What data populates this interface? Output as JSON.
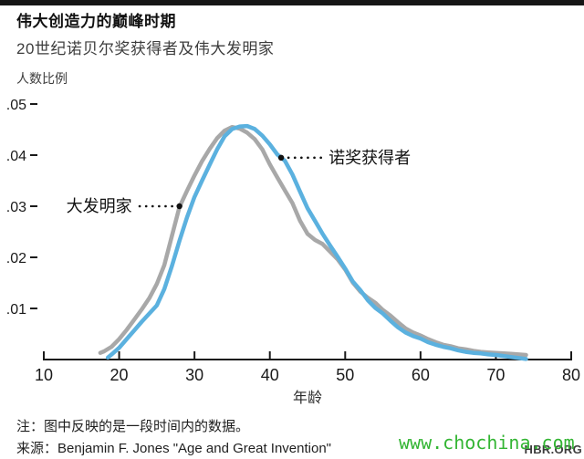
{
  "header": {
    "title": "伟大创造力的巅峰时期",
    "subtitle": "20世纪诺贝尔奖获得者及伟大发明家"
  },
  "footer": {
    "note": "注：图中反映的是一段时间内的数据。",
    "source": "来源：Benjamin F. Jones \"Age and Great Invention\"",
    "brand": "HBR.ORG",
    "watermark": "www.chochina.com",
    "watermark_color": "#33b533"
  },
  "chart_data": {
    "type": "line",
    "title": "伟大创造力的巅峰时期",
    "subtitle": "20世纪诺贝尔奖获得者及伟大发明家",
    "xlabel": "年龄",
    "ylabel": "人数比例",
    "xlim": [
      10,
      80
    ],
    "ylim": [
      0,
      0.05
    ],
    "x_ticks": [
      10,
      20,
      30,
      40,
      50,
      60,
      70,
      80
    ],
    "y_ticks": [
      0.01,
      0.02,
      0.03,
      0.04,
      0.05
    ],
    "y_tick_labels": [
      ".01",
      ".02",
      ".03",
      ".04",
      ".05"
    ],
    "grid": false,
    "legend_position": "inline-annotations",
    "axis_color": "#1a1a1a",
    "series": [
      {
        "name": "大发明家",
        "color": "#a8a8a8",
        "x": [
          17.5,
          18,
          19,
          20,
          21,
          22,
          23,
          24,
          25,
          26,
          27,
          28,
          29,
          30,
          31,
          32,
          33,
          34,
          35,
          36,
          37,
          38,
          39,
          40,
          41,
          42,
          43,
          44,
          45,
          46,
          47,
          48,
          49,
          50,
          51,
          52,
          53,
          54,
          55,
          56,
          57,
          58,
          59,
          60,
          61,
          62,
          63,
          64,
          65,
          66,
          67,
          68,
          69,
          70,
          71,
          72,
          73,
          74
        ],
        "y": [
          0.0013,
          0.0016,
          0.0025,
          0.004,
          0.0058,
          0.0078,
          0.0098,
          0.012,
          0.0148,
          0.0185,
          0.0242,
          0.0298,
          0.033,
          0.036,
          0.0388,
          0.0412,
          0.0433,
          0.0448,
          0.0455,
          0.0452,
          0.0444,
          0.0431,
          0.0411,
          0.0382,
          0.0356,
          0.0331,
          0.0306,
          0.0272,
          0.0246,
          0.0234,
          0.0226,
          0.0211,
          0.0196,
          0.0176,
          0.0151,
          0.0133,
          0.0121,
          0.0111,
          0.0097,
          0.0086,
          0.0073,
          0.0061,
          0.0053,
          0.0047,
          0.004,
          0.0034,
          0.0029,
          0.0026,
          0.0022,
          0.002,
          0.0017,
          0.0015,
          0.0014,
          0.0013,
          0.0012,
          0.0011,
          0.001,
          0.0009
        ]
      },
      {
        "name": "诺奖获得者",
        "color": "#5bb1df",
        "x": [
          18.5,
          19,
          20,
          21,
          22,
          23,
          24,
          25,
          26,
          27,
          28,
          29,
          30,
          31,
          32,
          33,
          34,
          35,
          36,
          37,
          38,
          39,
          40,
          41,
          42,
          43,
          44,
          45,
          46,
          47,
          48,
          49,
          50,
          51,
          52,
          53,
          54,
          55,
          56,
          57,
          58,
          59,
          60,
          61,
          62,
          63,
          64,
          65,
          66,
          67,
          68,
          69,
          70,
          71,
          72,
          73,
          74
        ],
        "y": [
          0.0004,
          0.001,
          0.0023,
          0.004,
          0.0057,
          0.0074,
          0.009,
          0.0106,
          0.0138,
          0.0183,
          0.0232,
          0.0278,
          0.0318,
          0.035,
          0.0381,
          0.0411,
          0.0437,
          0.0451,
          0.0456,
          0.0457,
          0.0451,
          0.0438,
          0.0421,
          0.0401,
          0.0389,
          0.0362,
          0.0329,
          0.0296,
          0.0271,
          0.0246,
          0.0223,
          0.0201,
          0.0178,
          0.0153,
          0.0136,
          0.0116,
          0.0101,
          0.009,
          0.0076,
          0.0063,
          0.0053,
          0.0046,
          0.0041,
          0.0034,
          0.0029,
          0.0025,
          0.0022,
          0.0018,
          0.0015,
          0.0013,
          0.0012,
          0.001,
          0.0009,
          0.0007,
          0.0005,
          0.0003,
          0.0001
        ]
      }
    ],
    "annotations": [
      {
        "text": "大发明家",
        "series": 0,
        "anchor_age": 28,
        "anchor_value": 0.03,
        "side": "left"
      },
      {
        "text": "诺奖获得者",
        "series": 1,
        "anchor_age": 41.5,
        "anchor_value": 0.0395,
        "side": "right"
      }
    ]
  }
}
